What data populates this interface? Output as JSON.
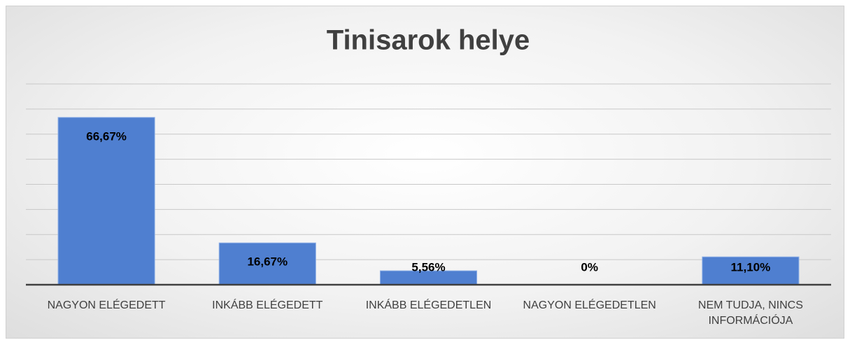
{
  "chart_data": {
    "type": "bar",
    "title": "Tinisarok helye",
    "categories": [
      "NAGYON ELÉGEDETT",
      "INKÁBB ELÉGEDETT",
      "INKÁBB ELÉGEDETLEN",
      "NAGYON ELÉGEDETLEN",
      "NEM TUDJA, NINCS INFORMÁCIÓJA"
    ],
    "values": [
      66.67,
      16.67,
      5.56,
      0,
      11.1
    ],
    "value_labels": [
      "66,67%",
      "16,67%",
      "5,56%",
      "0%",
      "11,10%"
    ],
    "color": "#4f7fd0",
    "ylim": [
      0,
      80
    ],
    "yticks": [
      0,
      10,
      20,
      30,
      40,
      50,
      60,
      70,
      80
    ],
    "grid": true
  }
}
